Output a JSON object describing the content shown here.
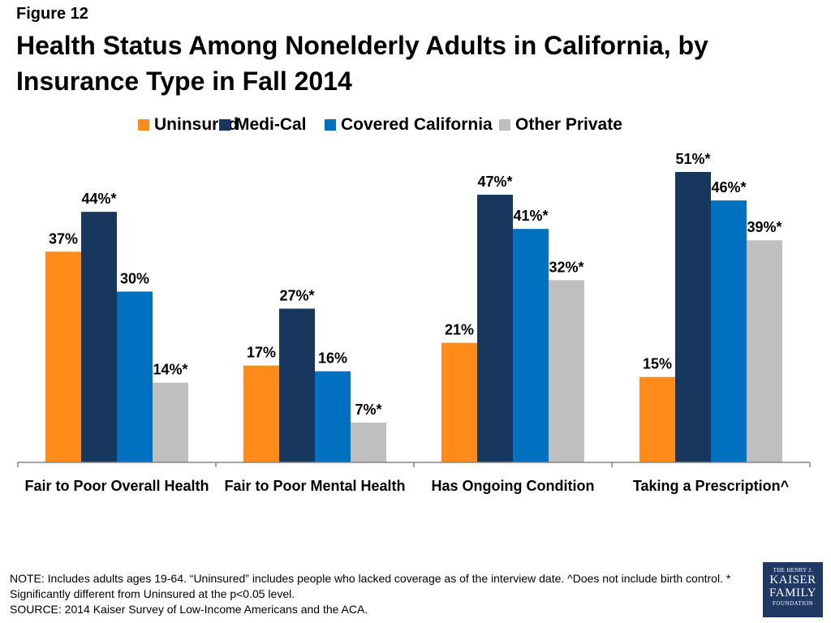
{
  "figure_label": "Figure 12",
  "title": "Health Status Among Nonelderly Adults in California, by Insurance Type in Fall 2014",
  "colors": {
    "Uninsured": "#ff8c1a",
    "Medi-Cal": "#17375e",
    "Covered California": "#0070c0",
    "Other Private": "#bfbfbf"
  },
  "chart_data": {
    "type": "bar",
    "categories": [
      "Fair to Poor Overall Health",
      "Fair to Poor Mental Health",
      "Has Ongoing Condition",
      "Taking a Prescription^"
    ],
    "series": [
      {
        "name": "Uninsured",
        "values": [
          37,
          17,
          21,
          15
        ],
        "labels": [
          "37%",
          "17%",
          "21%",
          "15%"
        ]
      },
      {
        "name": "Medi-Cal",
        "values": [
          44,
          27,
          47,
          51
        ],
        "labels": [
          "44%*",
          "27%*",
          "47%*",
          "51%*"
        ]
      },
      {
        "name": "Covered California",
        "values": [
          30,
          16,
          41,
          46
        ],
        "labels": [
          "30%",
          "16%",
          "41%*",
          "46%*"
        ]
      },
      {
        "name": "Other Private",
        "values": [
          14,
          7,
          32,
          39
        ],
        "labels": [
          "14%*",
          "7%*",
          "32%*",
          "39%*"
        ]
      }
    ],
    "ylim": [
      0,
      51
    ],
    "legend_position": "top",
    "grid": false
  },
  "notes": [
    "NOTE: Includes adults ages 19-64. “Uninsured” includes people who lacked coverage as of the interview date. ^Does not include birth control. * Significantly different from Uninsured at the p<0.05 level.",
    "SOURCE: 2014 Kaiser Survey of Low-Income Americans and the ACA."
  ],
  "logo": {
    "line1": "THE HENRY J.",
    "line2": "KAISER",
    "line3": "FAMILY",
    "line4": "FOUNDATION"
  }
}
